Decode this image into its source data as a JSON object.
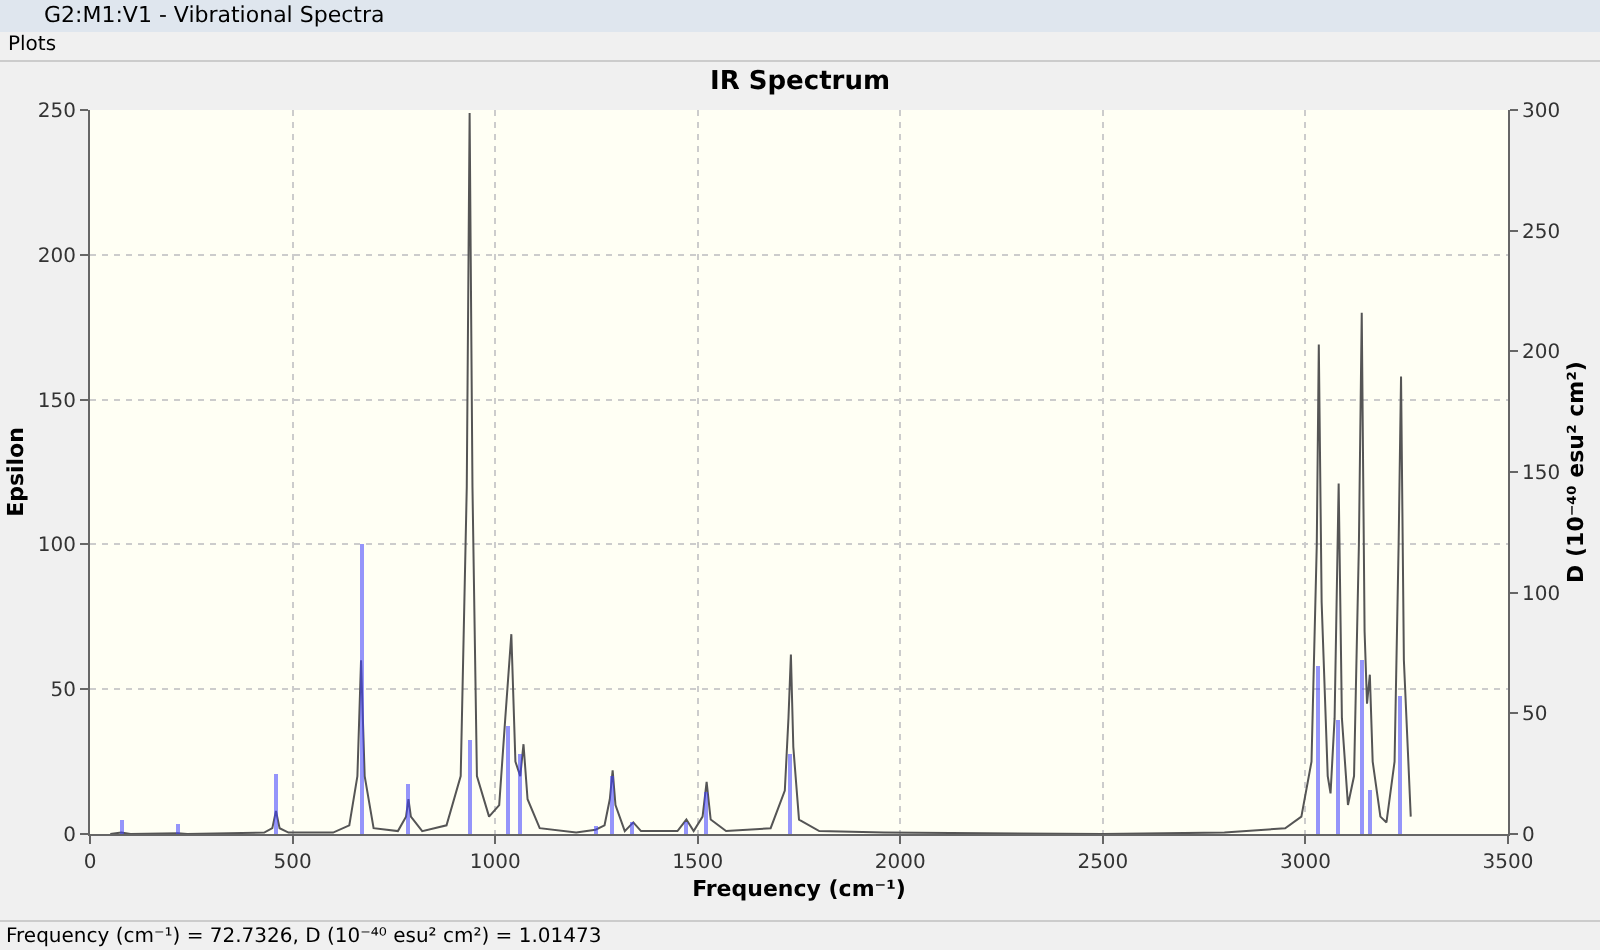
{
  "chart_data": {
    "type": "line",
    "title": "IR Spectrum",
    "xlabel": "Frequency (cm⁻¹)",
    "ylabel": "Epsilon",
    "y2label": "D (10⁻⁴⁰ esu² cm²)",
    "annotations": [
      "G2:M1:V1 - Vibrational Spectra",
      "Plots",
      "Frequency (cm⁻¹) = 72.7326, D (10⁻⁴⁰ esu² cm²) = 1.01473"
    ],
    "xlim": [
      0,
      3500
    ],
    "xticks": [
      0,
      500,
      1000,
      1500,
      2000,
      2500,
      3000,
      3500
    ],
    "ylim": [
      0,
      250
    ],
    "yticks": [
      0,
      50,
      100,
      150,
      200,
      250
    ],
    "y2lim": [
      0,
      300
    ],
    "y2ticks": [
      0,
      50,
      100,
      150,
      200,
      250,
      300
    ],
    "grid": true,
    "legend": false,
    "marker": "none",
    "line_style": "solid",
    "series": [
      {
        "color": "#555555",
        "x": [
          50,
          77,
          100,
          217,
          240,
          430,
          450,
          459,
          468,
          490,
          600,
          640,
          660,
          669,
          678,
          700,
          760,
          780,
          786,
          792,
          820,
          880,
          915,
          930,
          937,
          944,
          955,
          985,
          1010,
          1025,
          1040,
          1050,
          1062,
          1070,
          1080,
          1110,
          1200,
          1248,
          1270,
          1283,
          1290,
          1297,
          1320,
          1341,
          1360,
          1450,
          1472,
          1490,
          1512,
          1522,
          1532,
          1570,
          1680,
          1715,
          1724,
          1730,
          1736,
          1750,
          1800,
          1960,
          2500,
          2800,
          2950,
          2990,
          3015,
          3028,
          3033,
          3040,
          3055,
          3062,
          3072,
          3082,
          3090,
          3105,
          3120,
          3132,
          3139,
          3146,
          3152,
          3159,
          3166,
          3185,
          3200,
          3220,
          3230,
          3236,
          3243,
          3260
        ],
        "values": [
          0,
          0.5,
          0,
          0.3,
          0,
          0.5,
          2,
          8,
          2,
          0.5,
          0.5,
          3,
          20,
          60,
          20,
          2,
          1,
          6,
          12,
          6,
          1,
          3,
          20,
          120,
          249,
          120,
          20,
          6,
          10,
          40,
          69,
          25,
          20,
          31,
          12,
          2,
          0.5,
          1.5,
          3,
          12,
          22,
          10,
          1,
          4,
          1,
          1,
          5,
          1,
          6,
          18,
          5,
          1,
          2,
          15,
          40,
          62,
          30,
          5,
          1,
          0.5,
          0,
          0.5,
          2,
          6,
          25,
          100,
          169,
          80,
          20,
          14,
          40,
          121,
          40,
          10,
          20,
          100,
          180,
          70,
          45,
          55,
          25,
          6,
          4,
          25,
          100,
          158,
          60,
          6
        ]
      },
      {
        "type": "bar",
        "axis": "y2",
        "color": "#4040ff",
        "x": [
          77,
          217,
          459,
          669,
          786,
          936,
          1031,
          1062,
          1248,
          1286,
          1337,
          1470,
          1519,
          1728,
          3033,
          3082,
          3139,
          3159,
          3234
        ],
        "values": [
          6,
          4,
          25,
          120,
          21,
          39,
          45,
          33,
          3,
          24,
          5,
          5,
          17,
          33,
          70,
          47,
          72,
          18,
          57
        ]
      }
    ]
  }
}
